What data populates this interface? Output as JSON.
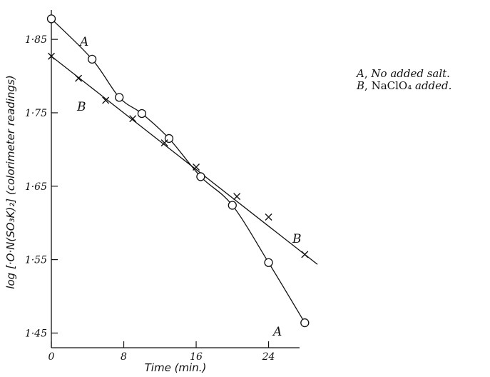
{
  "chart_data": {
    "type": "line",
    "title": "",
    "xlabel": "Time (min.)",
    "ylabel": "log [·O·N(SO₃K)₂] (colorimeter readings)",
    "xlim": [
      0,
      29
    ],
    "ylim": [
      1.43,
      1.89
    ],
    "xticks": [
      0,
      8,
      16,
      24
    ],
    "xtick_labels": [
      "0",
      "8",
      "16",
      "24"
    ],
    "yticks": [
      1.45,
      1.55,
      1.65,
      1.75,
      1.85
    ],
    "ytick_labels": [
      "1·45",
      "1·55",
      "1·65",
      "1·75",
      "1·85"
    ],
    "grid": false,
    "series": [
      {
        "name": "A",
        "marker": "circle",
        "x": [
          0,
          4.5,
          7.5,
          10,
          13,
          16.5,
          20,
          24,
          28
        ],
        "y": [
          1.878,
          1.823,
          1.771,
          1.749,
          1.715,
          1.663,
          1.624,
          1.546,
          1.464
        ]
      },
      {
        "name": "B",
        "marker": "cross",
        "x": [
          0,
          3,
          6,
          9,
          12.5,
          16,
          20.5,
          24,
          28
        ],
        "y": [
          1.827,
          1.797,
          1.767,
          1.742,
          1.709,
          1.676,
          1.636,
          1.608,
          1.557
        ]
      }
    ],
    "legend": [
      {
        "key": "A",
        "sep": ", ",
        "text_before": "No added salt.",
        "formula": "",
        "text_after": ""
      },
      {
        "key": "B",
        "sep": ", ",
        "text_before": "",
        "formula": "NaClO₄",
        "text_after": " added."
      }
    ]
  }
}
